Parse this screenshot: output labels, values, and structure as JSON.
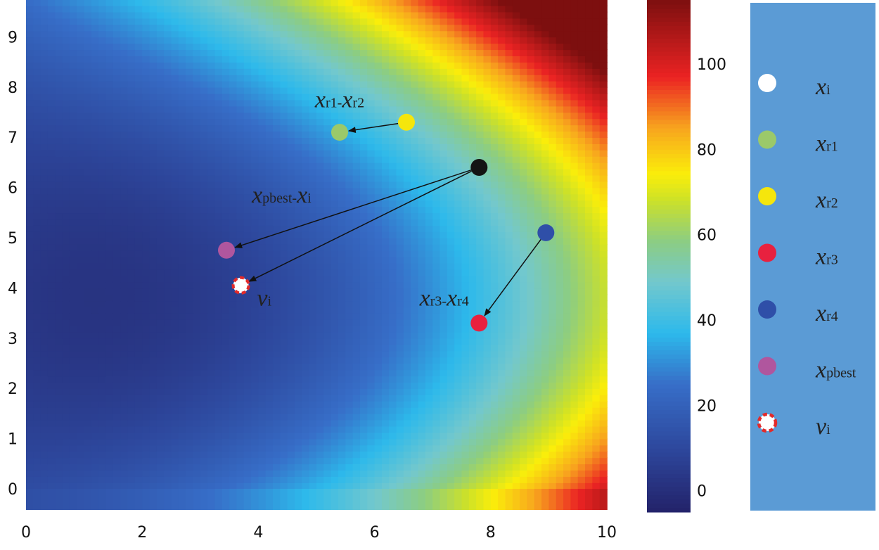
{
  "chart_data": {
    "type": "heatmap",
    "xlim": [
      0,
      10
    ],
    "ylim": [
      0,
      10
    ],
    "x_ticks": [
      "0",
      "2",
      "4",
      "6",
      "8",
      "10"
    ],
    "y_ticks": [
      "0",
      "1",
      "2",
      "3",
      "4",
      "5",
      "6",
      "7",
      "8",
      "9"
    ],
    "colorbar": {
      "range": [
        -5,
        115
      ],
      "ticks": [
        "0",
        "20",
        "40",
        "60",
        "80",
        "100"
      ]
    },
    "points": [
      {
        "name": "xr2",
        "x": 6.55,
        "y": 7.3,
        "color": "#f5e60c",
        "stroke": "none"
      },
      {
        "name": "xr1",
        "x": 5.4,
        "y": 7.1,
        "color": "#9bc96a",
        "stroke": "none"
      },
      {
        "name": "xi",
        "x": 7.8,
        "y": 6.4,
        "color": "#141414",
        "stroke": "none"
      },
      {
        "name": "xr4",
        "x": 8.95,
        "y": 5.1,
        "color": "#2f4fa8",
        "stroke": "none"
      },
      {
        "name": "xpbest",
        "x": 3.45,
        "y": 4.75,
        "color": "#b0569e",
        "stroke": "none"
      },
      {
        "name": "vi",
        "x": 3.7,
        "y": 4.05,
        "color": "#ffffff",
        "stroke": "#e32a2a"
      },
      {
        "name": "xr3",
        "x": 7.8,
        "y": 3.3,
        "color": "#e8213f",
        "stroke": "none"
      }
    ],
    "arrows": [
      {
        "from": [
          6.55,
          7.3
        ],
        "to": [
          5.4,
          7.1
        ]
      },
      {
        "from": [
          7.8,
          6.4
        ],
        "to": [
          3.45,
          4.75
        ]
      },
      {
        "from": [
          7.8,
          6.4
        ],
        "to": [
          3.7,
          4.05
        ]
      },
      {
        "from": [
          8.95,
          5.1
        ],
        "to": [
          7.8,
          3.3
        ]
      }
    ],
    "annotations": [
      {
        "base": "x",
        "sub": "r1",
        "op": "-",
        "base2": "x",
        "sub2": "r2",
        "x": 5.4,
        "y": 7.6
      },
      {
        "base": "x",
        "sub": "pbest",
        "op": "-",
        "base2": "x",
        "sub2": "i",
        "x": 4.4,
        "y": 5.7
      },
      {
        "base": "v",
        "sub": "i",
        "x": 4.1,
        "y": 3.65
      },
      {
        "base": "x",
        "sub": "r3",
        "op": "-",
        "base2": "x",
        "sub2": "r4",
        "x": 7.2,
        "y": 3.65
      }
    ]
  },
  "legend": {
    "items": [
      {
        "base": "x",
        "sub": "i",
        "color": "#ffffff",
        "stroke": "none"
      },
      {
        "base": "x",
        "sub": "r1",
        "color": "#9bc96a",
        "stroke": "none"
      },
      {
        "base": "x",
        "sub": "r2",
        "color": "#f5e60c",
        "stroke": "none"
      },
      {
        "base": "x",
        "sub": "r3",
        "color": "#e8213f",
        "stroke": "none"
      },
      {
        "base": "x",
        "sub": "r4",
        "color": "#2f4fa8",
        "stroke": "none"
      },
      {
        "base": "x",
        "sub": "pbest",
        "color": "#b0569e",
        "stroke": "none"
      },
      {
        "base": "v",
        "sub": "i",
        "color": "#ffffff",
        "stroke": "#e32a2a"
      }
    ],
    "background": "#5b9bd5"
  }
}
